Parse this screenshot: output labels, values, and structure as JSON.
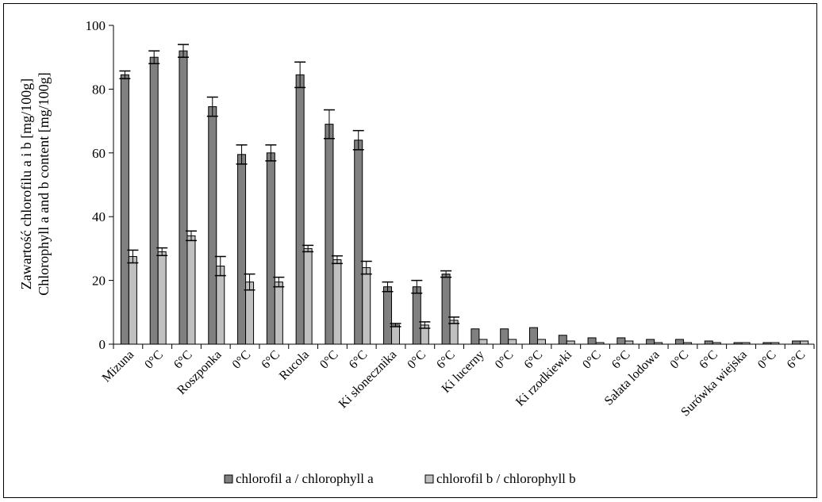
{
  "chart_data": {
    "type": "bar",
    "ylabel_lines": [
      "Zawartość chlorofilu a i b [mg/100g]",
      "Chlorophyll a and b content [mg/100g]"
    ],
    "ylim": [
      0,
      100
    ],
    "yticks": [
      0,
      20,
      40,
      60,
      80,
      100
    ],
    "grid": false,
    "legend_position": "bottom",
    "groups": [
      {
        "categories": [
          "Mizuna",
          "0°C",
          "6°C"
        ]
      },
      {
        "categories": [
          "Roszponka",
          "0°C",
          "6°C"
        ]
      },
      {
        "categories": [
          "Rucola",
          "0°C",
          "6°C"
        ]
      },
      {
        "categories": [
          "Ki słonecznika",
          "0°C",
          "6°C"
        ]
      },
      {
        "categories": [
          "Ki lucerny",
          "0°C",
          "6°C"
        ]
      },
      {
        "categories": [
          "Ki rzodkiewki",
          "0°C",
          "6°C"
        ]
      },
      {
        "categories": [
          "Sałata lodowa",
          "0°C",
          "6°C"
        ]
      },
      {
        "categories": [
          "Surówka wiejska",
          "0°C",
          "6°C"
        ]
      }
    ],
    "series": [
      {
        "name": "chlorofil a / chlorophyll a",
        "color": "#808080",
        "values": [
          84.5,
          90,
          92,
          74.5,
          59.5,
          60,
          84.5,
          69,
          64,
          18,
          18,
          22,
          4.8,
          4.8,
          5.2,
          2.8,
          2,
          2,
          1.5,
          1.5,
          1,
          0.5,
          0.5,
          1
        ],
        "errors": [
          1.2,
          2,
          2,
          3,
          3,
          2.5,
          4,
          4.5,
          3,
          1.5,
          2,
          1,
          0,
          0,
          0,
          0,
          0,
          0,
          0,
          0,
          0,
          0,
          0,
          0
        ]
      },
      {
        "name": "chlorofil b / chlorophyll b",
        "color": "#c0c0c0",
        "values": [
          27.5,
          29,
          34,
          24.5,
          19.5,
          19.5,
          30,
          26.5,
          24,
          6,
          6,
          7.5,
          1.5,
          1.5,
          1.5,
          1,
          0.5,
          1,
          0.5,
          0.5,
          0.5,
          0.5,
          0.5,
          1
        ],
        "errors": [
          2,
          1.2,
          1.5,
          3,
          2.5,
          1.5,
          1,
          1.2,
          2,
          0.5,
          1,
          1,
          0,
          0,
          0,
          0,
          0,
          0,
          0,
          0,
          0,
          0,
          0,
          0
        ]
      }
    ]
  }
}
